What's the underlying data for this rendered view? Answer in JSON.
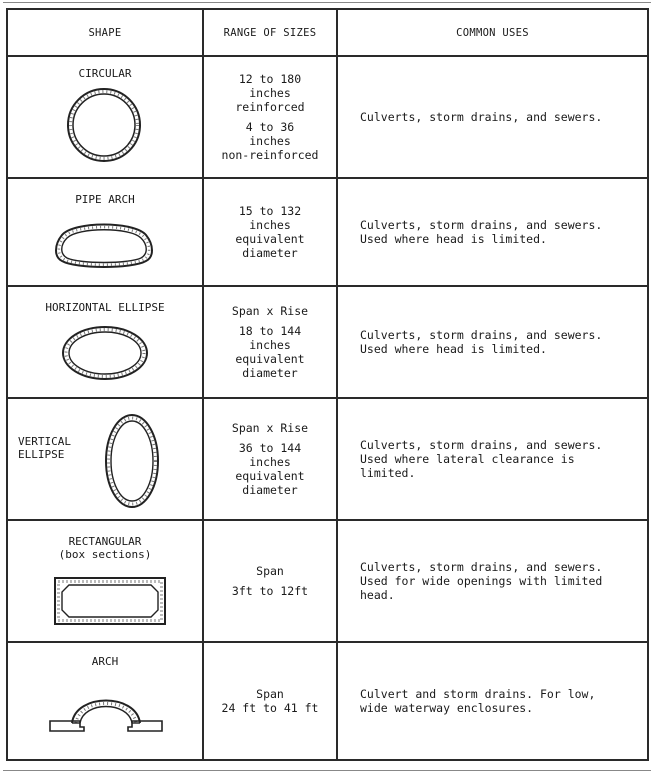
{
  "headers": {
    "shape": "SHAPE",
    "range": "RANGE OF SIZES",
    "uses": "COMMON USES"
  },
  "rows": [
    {
      "shape_name": "CIRCULAR",
      "shape_icon": "circular-pipe-icon",
      "range_lines": [
        "12 to 180",
        "inches",
        "reinforced",
        "",
        "4 to 36",
        "inches",
        "non-reinforced"
      ],
      "uses_lines": [
        "Culverts, storm drains, and sewers."
      ]
    },
    {
      "shape_name": "PIPE ARCH",
      "shape_icon": "pipe-arch-icon",
      "range_lines": [
        "15 to 132",
        "inches",
        "equivalent",
        "diameter"
      ],
      "uses_lines": [
        "Culverts, storm drains, and sewers.",
        "Used where head is limited."
      ]
    },
    {
      "shape_name": "HORIZONTAL ELLIPSE",
      "shape_icon": "horizontal-ellipse-icon",
      "range_lines": [
        "Span x Rise",
        "",
        "18 to 144",
        "inches",
        "equivalent",
        "diameter"
      ],
      "uses_lines": [
        "Culverts, storm drains, and sewers.",
        "Used where head is limited."
      ]
    },
    {
      "shape_name_lines": [
        "VERTICAL",
        "ELLIPSE"
      ],
      "shape_icon": "vertical-ellipse-icon",
      "range_lines": [
        "Span x Rise",
        "",
        "36 to 144",
        "inches",
        "equivalent",
        "diameter"
      ],
      "uses_lines": [
        "Culverts, storm drains, and sewers.",
        "Used where lateral clearance is",
        "limited."
      ]
    },
    {
      "shape_name_lines": [
        "RECTANGULAR",
        "(box sections)"
      ],
      "shape_icon": "box-section-icon",
      "range_lines": [
        "Span",
        "",
        "3ft to 12ft"
      ],
      "uses_lines": [
        "Culverts, storm drains, and sewers.",
        "Used for wide openings with limited",
        "head."
      ]
    },
    {
      "shape_name": "ARCH",
      "shape_icon": "arch-icon",
      "range_lines": [
        "Span",
        "24 ft to 41 ft"
      ],
      "uses_lines": [
        "Culvert and storm drains.  For low,",
        "wide waterway enclosures."
      ]
    }
  ]
}
